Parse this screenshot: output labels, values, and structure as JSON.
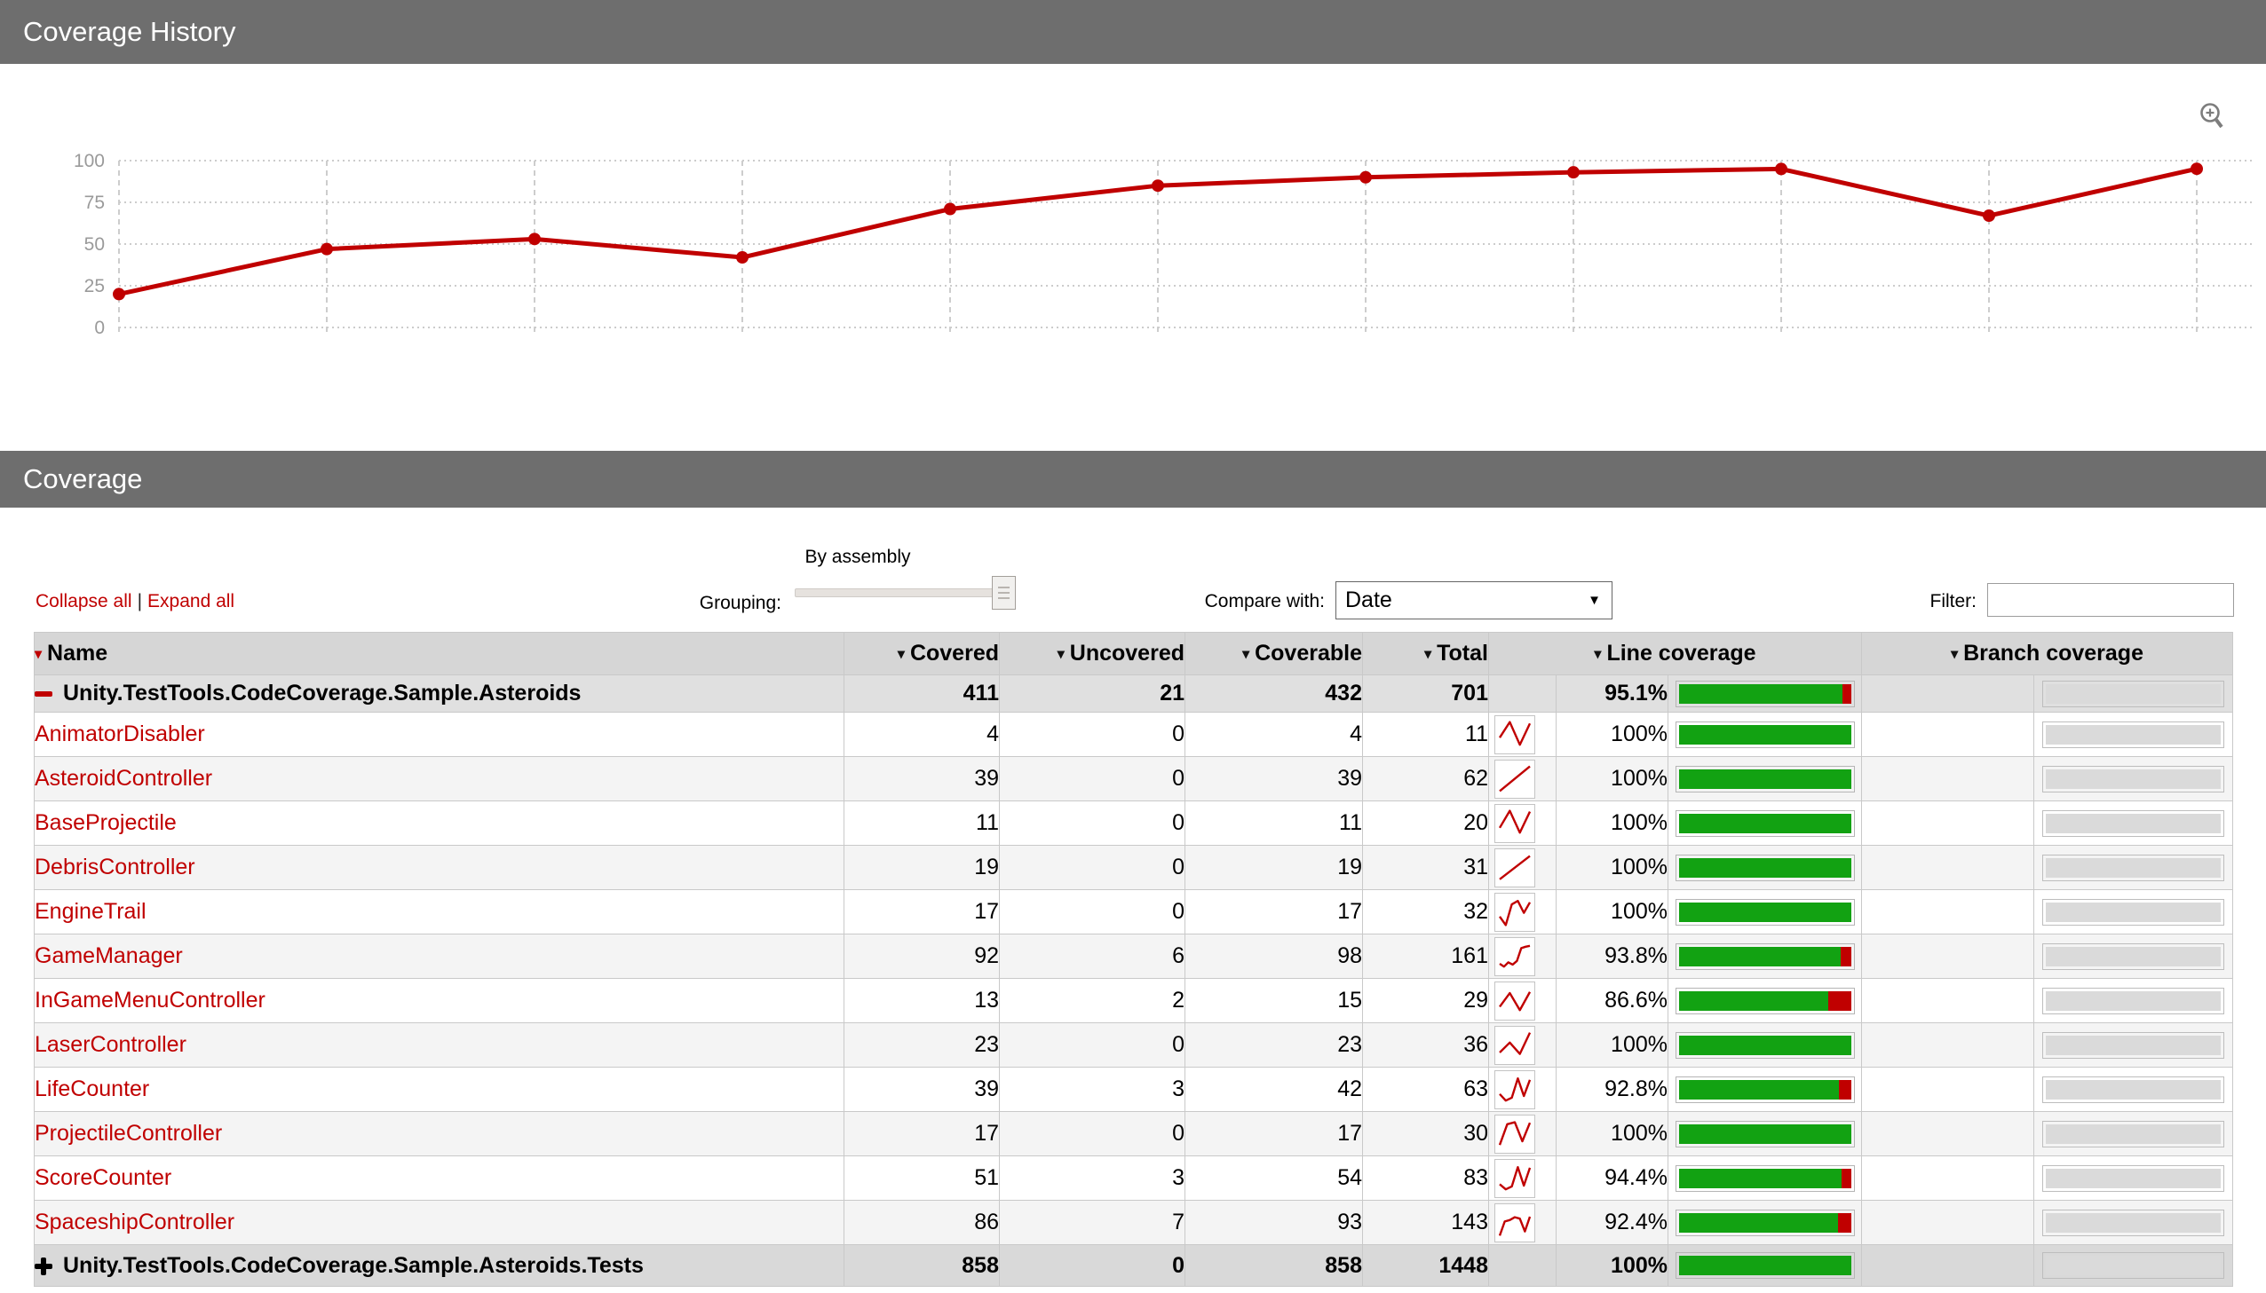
{
  "colors": {
    "accent_red": "#c00000",
    "bar_green": "#12a212",
    "section_bar_bg": "#6e6e6e",
    "grid_line": "#cccccc",
    "axis_label": "#9a9a9a"
  },
  "icons": {
    "sort_arrow": "▾",
    "select_arrow": "▼",
    "pipe": "|"
  },
  "sections": {
    "history_title": "Coverage History",
    "coverage_title": "Coverage"
  },
  "chart_data": {
    "type": "line",
    "title": "Coverage History",
    "series": [
      {
        "name": "Line coverage %",
        "values": [
          20,
          47,
          53,
          42,
          71,
          85,
          90,
          93,
          95,
          67,
          95.1
        ]
      }
    ],
    "x": [
      1,
      2,
      3,
      4,
      5,
      6,
      7,
      8,
      9,
      10,
      11
    ],
    "yticks": [
      0,
      25,
      50,
      75,
      100
    ],
    "ylim": [
      0,
      100
    ],
    "grid": true,
    "legend": "none",
    "line_color": "#c00000"
  },
  "controls": {
    "collapse_all": "Collapse all",
    "expand_all": "Expand all",
    "separator": "|",
    "grouping_label": "Grouping:",
    "grouping_value": "By assembly",
    "compare_label": "Compare with:",
    "compare_value": "Date",
    "filter_label": "Filter:",
    "filter_value": ""
  },
  "table": {
    "header": {
      "name": "Name",
      "covered": "Covered",
      "uncovered": "Uncovered",
      "coverable": "Coverable",
      "total": "Total",
      "line_coverage": "Line coverage",
      "branch_coverage": "Branch coverage"
    },
    "rows": [
      {
        "kind": "assembly",
        "expander": "minus",
        "name": "Unity.TestTools.CodeCoverage.Sample.Asteroids",
        "covered": "411",
        "uncovered": "21",
        "coverable": "432",
        "total": "701",
        "pct": "95.1%",
        "pct_value": 95.1,
        "history": null
      },
      {
        "kind": "class",
        "name": "AnimatorDisabler",
        "covered": "4",
        "uncovered": "0",
        "coverable": "4",
        "total": "11",
        "pct": "100%",
        "pct_value": 100,
        "history": [
          40,
          95,
          15,
          90
        ]
      },
      {
        "kind": "class",
        "name": "AsteroidController",
        "covered": "39",
        "uncovered": "0",
        "coverable": "39",
        "total": "62",
        "pct": "100%",
        "pct_value": 100,
        "history": [
          8,
          95
        ]
      },
      {
        "kind": "class",
        "name": "BaseProjectile",
        "covered": "11",
        "uncovered": "0",
        "coverable": "11",
        "total": "20",
        "pct": "100%",
        "pct_value": 100,
        "history": [
          35,
          95,
          18,
          92
        ]
      },
      {
        "kind": "class",
        "name": "DebrisController",
        "covered": "19",
        "uncovered": "0",
        "coverable": "19",
        "total": "31",
        "pct": "100%",
        "pct_value": 100,
        "history": [
          10,
          92
        ]
      },
      {
        "kind": "class",
        "name": "EngineTrail",
        "covered": "17",
        "uncovered": "0",
        "coverable": "17",
        "total": "32",
        "pct": "100%",
        "pct_value": 100,
        "history": [
          35,
          5,
          78,
          90,
          48,
          85
        ]
      },
      {
        "kind": "class",
        "name": "GameManager",
        "covered": "92",
        "uncovered": "6",
        "coverable": "98",
        "total": "161",
        "pct": "93.8%",
        "pct_value": 93.8,
        "history": [
          25,
          15,
          30,
          22,
          35,
          80,
          85,
          88
        ]
      },
      {
        "kind": "class",
        "name": "InGameMenuController",
        "covered": "13",
        "uncovered": "2",
        "coverable": "15",
        "total": "29",
        "pct": "86.6%",
        "pct_value": 86.6,
        "history": [
          30,
          78,
          18,
          82
        ]
      },
      {
        "kind": "class",
        "name": "LaserController",
        "covered": "23",
        "uncovered": "0",
        "coverable": "23",
        "total": "36",
        "pct": "100%",
        "pct_value": 100,
        "history": [
          25,
          60,
          20,
          95
        ]
      },
      {
        "kind": "class",
        "name": "LifeCounter",
        "covered": "39",
        "uncovered": "3",
        "coverable": "42",
        "total": "63",
        "pct": "92.8%",
        "pct_value": 92.8,
        "history": [
          35,
          12,
          22,
          90,
          28,
          85
        ]
      },
      {
        "kind": "class",
        "name": "ProjectileController",
        "covered": "17",
        "uncovered": "0",
        "coverable": "17",
        "total": "30",
        "pct": "100%",
        "pct_value": 100,
        "history": [
          12,
          85,
          92,
          25,
          90
        ]
      },
      {
        "kind": "class",
        "name": "ScoreCounter",
        "covered": "51",
        "uncovered": "3",
        "coverable": "54",
        "total": "83",
        "pct": "94.4%",
        "pct_value": 94.4,
        "history": [
          30,
          12,
          22,
          90,
          25,
          88
        ]
      },
      {
        "kind": "class",
        "name": "SpaceshipController",
        "covered": "86",
        "uncovered": "7",
        "coverable": "93",
        "total": "143",
        "pct": "92.4%",
        "pct_value": 92.4,
        "history": [
          5,
          55,
          60,
          70,
          65,
          20,
          72
        ]
      },
      {
        "kind": "assembly2",
        "expander": "plus",
        "name": "Unity.TestTools.CodeCoverage.Sample.Asteroids.Tests",
        "covered": "858",
        "uncovered": "0",
        "coverable": "858",
        "total": "1448",
        "pct": "100%",
        "pct_value": 100,
        "history": null
      }
    ]
  }
}
